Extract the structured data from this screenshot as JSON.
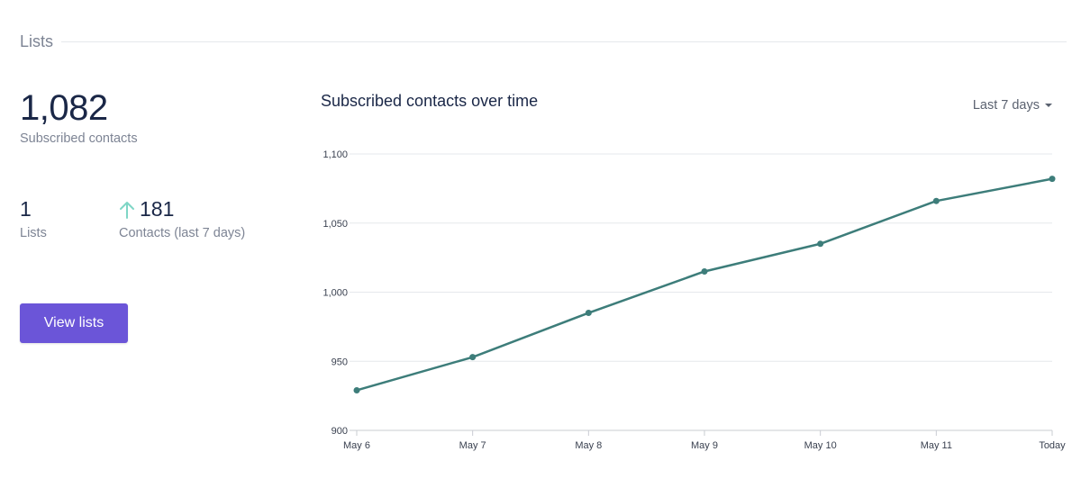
{
  "section": {
    "title": "Lists"
  },
  "summary": {
    "subscribed_count": "1,082",
    "subscribed_caption": "Subscribed contacts",
    "lists_count": "1",
    "lists_caption": "Lists",
    "contacts_growth": "181",
    "contacts_growth_caption": "Contacts (last 7 days)",
    "growth_icon": "arrow-up-icon",
    "view_lists_label": "View lists"
  },
  "chart_header": {
    "title": "Subscribed contacts over time",
    "range_label": "Last 7 days",
    "range_icon": "caret-down-icon"
  },
  "colors": {
    "accent": "#6b55d8",
    "line": "#3d7d7a",
    "growth_arrow": "#7fd6c6"
  },
  "chart_data": {
    "type": "line",
    "categories": [
      "May 6",
      "May 7",
      "May 8",
      "May 9",
      "May 10",
      "May 11",
      "Today"
    ],
    "series": [
      {
        "values": [
          929,
          953,
          985,
          1015,
          1035,
          1066,
          1082
        ]
      }
    ],
    "ylim": [
      900,
      1100
    ],
    "yticks": [
      900,
      950,
      1000,
      1050,
      1100
    ],
    "ytick_labels": [
      "900",
      "950",
      "1,000",
      "1,050",
      "1,100"
    ],
    "grid": true
  }
}
